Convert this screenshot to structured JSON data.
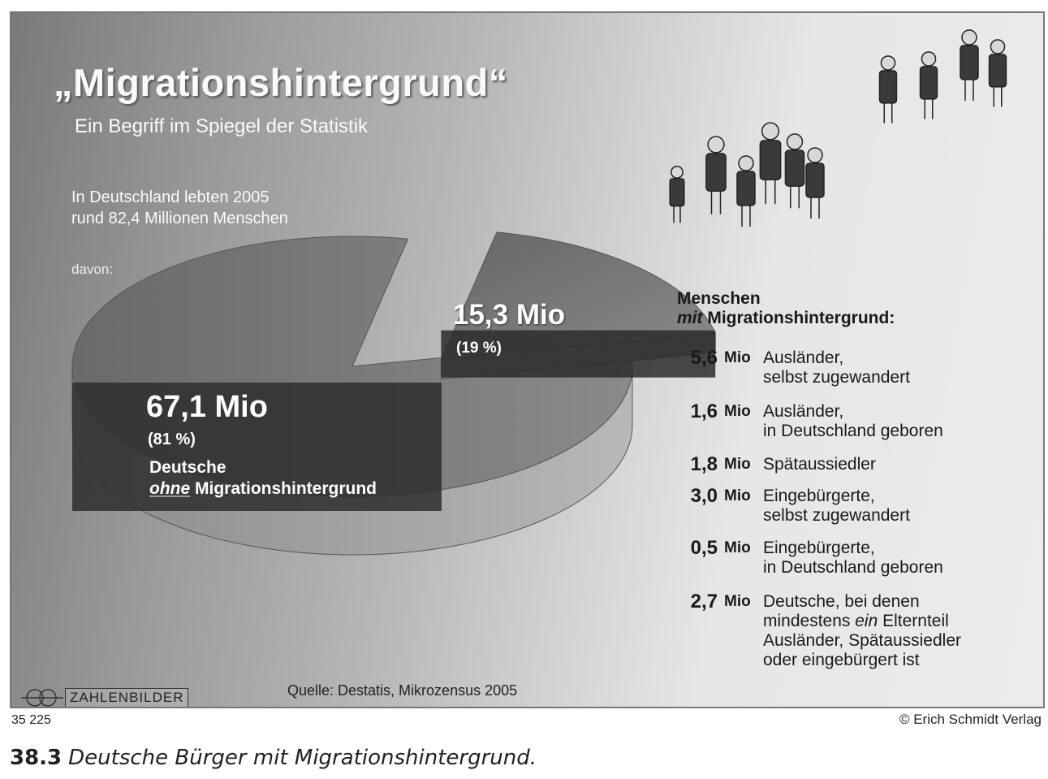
{
  "title": "„Migrationshintergrund“",
  "subtitle": "Ein Begriff im Spiegel der Statistik",
  "intro_line1": "In Deutschland lebten 2005",
  "intro_line2": "rund 82,4 Millionen Menschen",
  "davon": "davon:",
  "chart_data": {
    "type": "pie",
    "title": "„Migrationshintergrund“",
    "subtitle": "Ein Begriff im Spiegel der Statistik",
    "total_text": "In Deutschland lebten 2005 rund 82,4 Millionen Menschen",
    "slices": [
      {
        "value": 67.1,
        "value_text": "67,1 Mio",
        "percent": 81,
        "percent_text": "(81 %)",
        "label_line1": "Deutsche",
        "label_em": "ohne",
        "label_rest": "Migrationshintergrund",
        "color": "#3a3a3a"
      },
      {
        "value": 15.3,
        "value_text": "15,3 Mio",
        "percent": 19,
        "percent_text": "(19 %)",
        "color": "#333333"
      }
    ]
  },
  "legend": {
    "head_line1": "Menschen",
    "head_em": "mit",
    "head_rest": "Migrationshintergrund:",
    "items": [
      {
        "value": "5,6",
        "unit": "Mio",
        "lines": [
          "Ausländer,",
          "selbst zugewandert"
        ]
      },
      {
        "value": "1,6",
        "unit": "Mio",
        "lines": [
          "Ausländer,",
          "in Deutschland geboren"
        ]
      },
      {
        "value": "1,8",
        "unit": "Mio",
        "lines": [
          "Spätaussiedler"
        ]
      },
      {
        "value": "3,0",
        "unit": "Mio",
        "lines": [
          "Eingebürgerte,",
          "selbst zugewandert"
        ]
      },
      {
        "value": "0,5",
        "unit": "Mio",
        "lines": [
          "Eingebürgerte,",
          "in Deutschland geboren"
        ]
      },
      {
        "value": "2,7",
        "unit": "Mio",
        "lines": [
          "Deutsche, bei denen",
          "mindestens ein Elternteil",
          "Ausländer, Spätaussiedler",
          "oder eingebürgert ist"
        ]
      }
    ]
  },
  "logo_text": "ZAHLENBILDER",
  "source": "Quelle: Destatis, Mikrozensus 2005",
  "code": "35 225",
  "publisher": "© Erich Schmidt Verlag",
  "caption_number": "38.3",
  "caption_text": "Deutsche Bürger mit Migrationshintergrund."
}
